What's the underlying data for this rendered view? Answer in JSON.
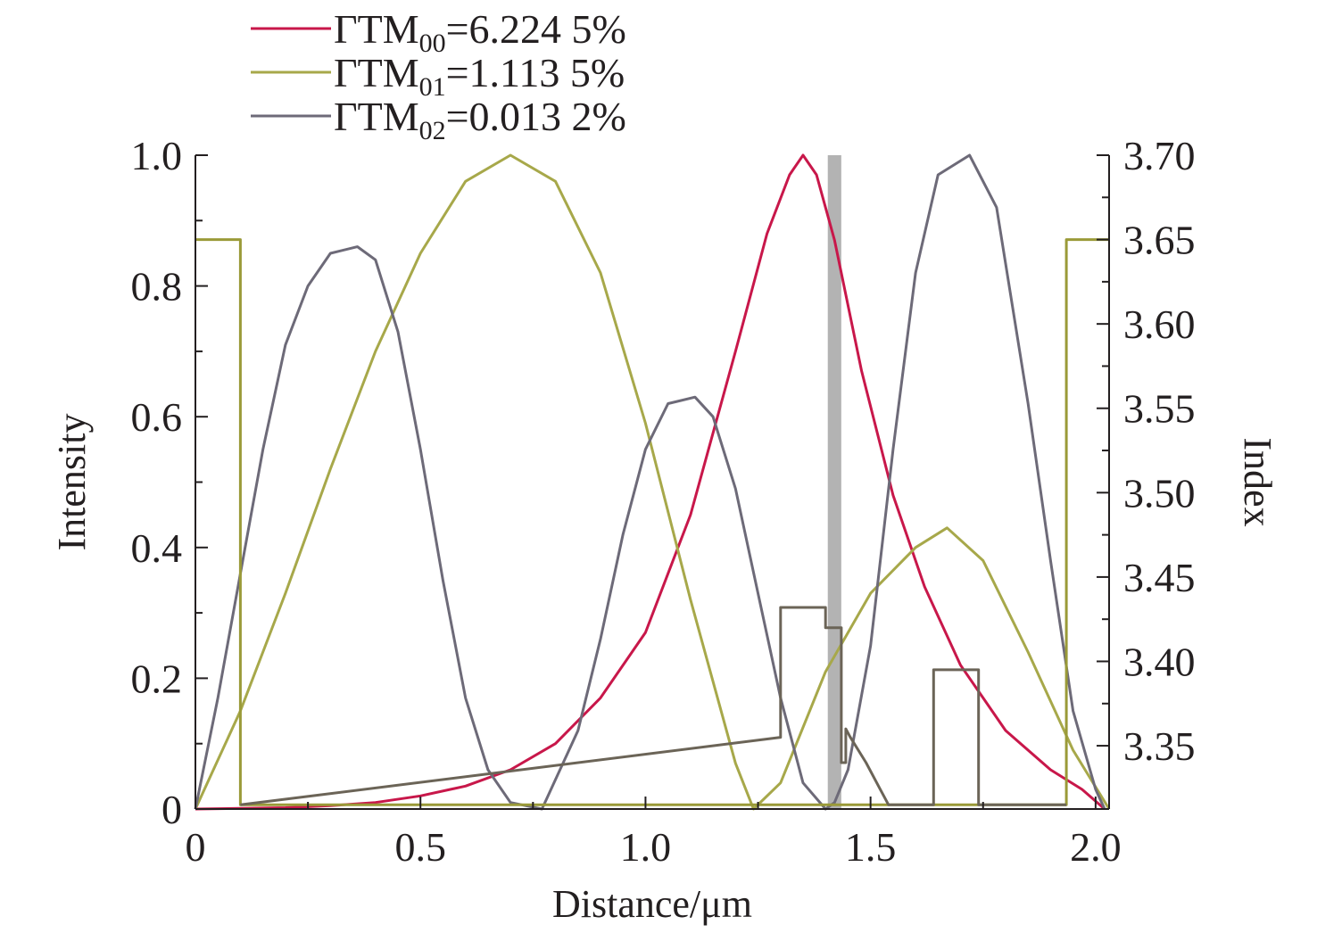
{
  "chart_data": {
    "type": "line",
    "xlabel": "Distance/μm",
    "ylabel": "Intensity",
    "y2label": "Index",
    "xlim": [
      0,
      2.03
    ],
    "ylim": [
      0,
      1.0
    ],
    "y2lim": [
      3.3125,
      3.7
    ],
    "x_ticks": [
      "0",
      "0.5",
      "1.0",
      "1.5",
      "2.0"
    ],
    "y_ticks": [
      "0",
      "0.2",
      "0.4",
      "0.6",
      "0.8",
      "1.0"
    ],
    "y2_ticks": [
      "3.35",
      "3.40",
      "3.45",
      "3.50",
      "3.55",
      "3.60",
      "3.65",
      "3.70"
    ],
    "grid": false,
    "legend": {
      "position": "top-left",
      "entries": [
        {
          "prefix": "ΓTM",
          "sub": "00",
          "value": "=6.224 5%",
          "color": "#c8174a"
        },
        {
          "prefix": "ΓTM",
          "sub": "01",
          "value": "=1.113 5%",
          "color": "#a7a84a"
        },
        {
          "prefix": "ΓTM",
          "sub": "02",
          "value": "=0.013 2%",
          "color": "#6d6a78"
        }
      ]
    },
    "highlight_band": {
      "x_range": [
        1.405,
        1.435
      ],
      "color": "#b3b3b3"
    },
    "series": [
      {
        "color": "#c8174a",
        "x": [
          0,
          0.2,
          0.3,
          0.4,
          0.5,
          0.6,
          0.7,
          0.8,
          0.9,
          1.0,
          1.1,
          1.2,
          1.27,
          1.32,
          1.35,
          1.38,
          1.42,
          1.48,
          1.55,
          1.62,
          1.7,
          1.8,
          1.9,
          1.97,
          2.02
        ],
        "y": [
          0,
          0.002,
          0.005,
          0.01,
          0.02,
          0.035,
          0.06,
          0.1,
          0.17,
          0.27,
          0.45,
          0.7,
          0.88,
          0.97,
          1.0,
          0.97,
          0.87,
          0.67,
          0.48,
          0.34,
          0.22,
          0.12,
          0.06,
          0.03,
          0
        ]
      },
      {
        "color": "#a7a84a",
        "x": [
          0,
          0.1,
          0.2,
          0.3,
          0.4,
          0.5,
          0.6,
          0.7,
          0.8,
          0.9,
          1.0,
          1.1,
          1.2,
          1.24,
          1.3,
          1.4,
          1.5,
          1.6,
          1.67,
          1.75,
          1.85,
          1.95,
          2.03
        ],
        "y": [
          0,
          0.15,
          0.33,
          0.52,
          0.7,
          0.85,
          0.96,
          1.0,
          0.96,
          0.82,
          0.59,
          0.32,
          0.07,
          0,
          0.04,
          0.21,
          0.33,
          0.4,
          0.43,
          0.38,
          0.24,
          0.09,
          0
        ]
      },
      {
        "color": "#6d6a78",
        "x": [
          0,
          0.05,
          0.1,
          0.15,
          0.2,
          0.25,
          0.3,
          0.36,
          0.4,
          0.45,
          0.5,
          0.55,
          0.6,
          0.65,
          0.7,
          0.77,
          0.85,
          0.9,
          0.95,
          1.0,
          1.05,
          1.11,
          1.15,
          1.2,
          1.25,
          1.3,
          1.35,
          1.4,
          1.42,
          1.45,
          1.5,
          1.55,
          1.6,
          1.65,
          1.72,
          1.78,
          1.85,
          1.9,
          1.95,
          2.0,
          2.02
        ],
        "y": [
          0,
          0.17,
          0.36,
          0.55,
          0.71,
          0.8,
          0.85,
          0.86,
          0.84,
          0.73,
          0.55,
          0.35,
          0.17,
          0.06,
          0.01,
          0,
          0.12,
          0.26,
          0.42,
          0.55,
          0.62,
          0.63,
          0.6,
          0.49,
          0.33,
          0.17,
          0.04,
          0,
          0.01,
          0.06,
          0.25,
          0.55,
          0.82,
          0.97,
          1.0,
          0.92,
          0.62,
          0.38,
          0.15,
          0.03,
          0
        ]
      },
      {
        "color": "#9a9a38",
        "axis": "y2",
        "x": [
          0,
          0.1,
          0.1,
          1.935,
          1.935,
          2.03
        ],
        "y": [
          3.65,
          3.65,
          3.315,
          3.315,
          3.65,
          3.65
        ]
      },
      {
        "color": "#6b6457",
        "axis": "y2",
        "x": [
          0.1,
          1.3,
          1.3,
          1.4,
          1.4,
          1.435,
          1.435,
          1.445,
          1.445,
          1.455,
          1.49,
          1.52,
          1.54,
          1.64,
          1.64,
          1.74,
          1.74,
          1.935
        ],
        "y": [
          3.315,
          3.355,
          3.432,
          3.432,
          3.42,
          3.42,
          3.34,
          3.34,
          3.36,
          3.355,
          3.34,
          3.325,
          3.315,
          3.315,
          3.395,
          3.395,
          3.315,
          3.315
        ]
      }
    ]
  }
}
